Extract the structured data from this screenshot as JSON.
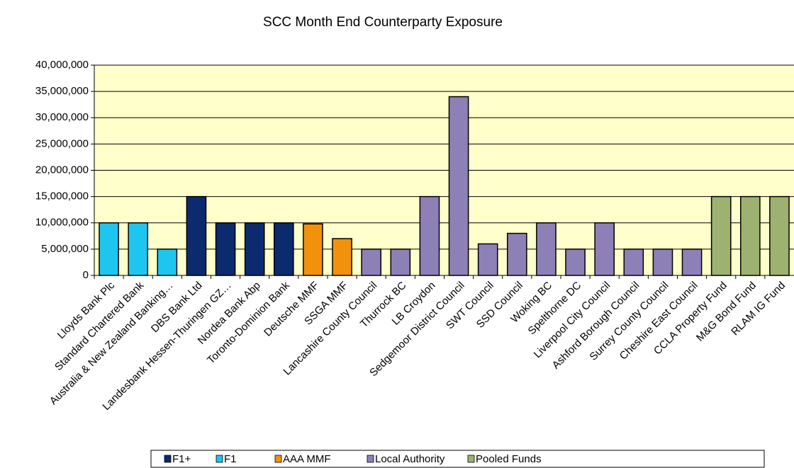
{
  "chart_data": {
    "type": "bar",
    "title": "SCC Month End Counterparty Exposure",
    "categories": [
      "Lloyds Bank Plc",
      "Standard Chartered Bank",
      "Australia & New Zealand Banking…",
      "DBS Bank Ltd",
      "Landesbank Hessen-Thuringen GZ…",
      "Nordea Bank Abp",
      "Toronto-Dominion Bank",
      "Deutsche MMF",
      "SSGA MMF",
      "Lancashire County Council",
      "Thurrock BC",
      "LB Croydon",
      "Sedgemoor District Council",
      "SWT Council",
      "SSD Council",
      "Woking BC",
      "Spelthorne DC",
      "Liverpool City Council",
      "Ashford Borough Council",
      "Surrey County Council",
      "Cheshire East Council",
      "CCLA Property Fund",
      "M&G Bond Fund",
      "RLAM IG Fund"
    ],
    "series": [
      {
        "name": "F1+",
        "color": "#0b2b6e",
        "values": [
          null,
          null,
          null,
          15000000,
          10000000,
          10000000,
          10000000,
          null,
          null,
          null,
          null,
          null,
          null,
          null,
          null,
          null,
          null,
          null,
          null,
          null,
          null,
          null,
          null,
          null
        ]
      },
      {
        "name": "F1",
        "color": "#1ec6ef",
        "values": [
          10000000,
          10000000,
          5000000,
          null,
          null,
          null,
          null,
          null,
          null,
          null,
          null,
          null,
          null,
          null,
          null,
          null,
          null,
          null,
          null,
          null,
          null,
          null,
          null,
          null
        ]
      },
      {
        "name": "AAA MMF",
        "color": "#f2920c",
        "values": [
          null,
          null,
          null,
          null,
          null,
          null,
          null,
          9800000,
          7000000,
          null,
          null,
          null,
          null,
          null,
          null,
          null,
          null,
          null,
          null,
          null,
          null,
          null,
          null,
          null
        ]
      },
      {
        "name": "Local Authority",
        "color": "#8d80b6",
        "values": [
          null,
          null,
          null,
          null,
          null,
          null,
          null,
          null,
          null,
          5000000,
          5000000,
          15000000,
          34000000,
          6000000,
          8000000,
          10000000,
          5000000,
          10000000,
          5000000,
          5000000,
          5000000,
          null,
          null,
          null
        ]
      },
      {
        "name": "Pooled Funds",
        "color": "#9db271",
        "values": [
          null,
          null,
          null,
          null,
          null,
          null,
          null,
          null,
          null,
          null,
          null,
          null,
          null,
          null,
          null,
          null,
          null,
          null,
          null,
          null,
          null,
          15000000,
          15000000,
          15000000
        ]
      }
    ],
    "ylim": [
      0,
      40000000
    ],
    "yticks": [
      0,
      {
        "value": 5000000,
        "label": "5,000,000"
      },
      {
        "value": 10000000,
        "label": "10,000,000"
      },
      {
        "value": 15000000,
        "label": "15,000,000"
      },
      {
        "value": 20000000,
        "label": "20,000,000"
      },
      {
        "value": 25000000,
        "label": "25,000,000"
      },
      {
        "value": 30000000,
        "label": "30,000,000"
      },
      {
        "value": 35000000,
        "label": "35,000,000"
      },
      {
        "value": 40000000,
        "label": "40,000,000"
      }
    ],
    "grid": true
  }
}
